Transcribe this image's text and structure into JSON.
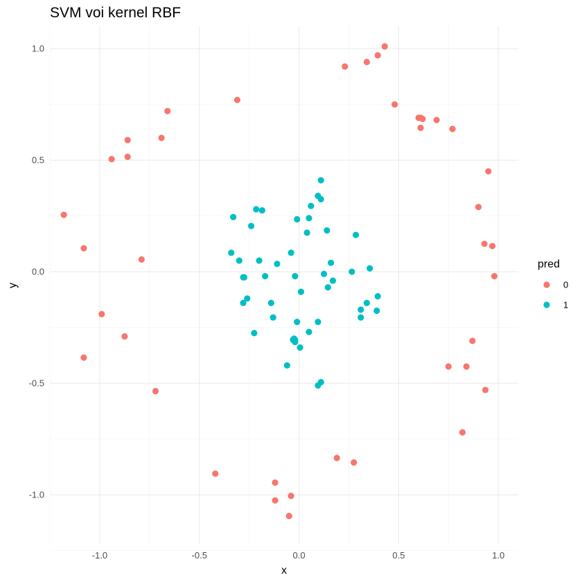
{
  "chart_data": {
    "type": "scatter",
    "title": "SVM voi kernel RBF",
    "xlabel": "x",
    "ylabel": "y",
    "xlim": [
      -1.25,
      1.1
    ],
    "ylim": [
      -1.22,
      1.1
    ],
    "x_ticks": [
      -1.0,
      -0.5,
      0.0,
      0.5,
      1.0
    ],
    "x_tick_labels": [
      "-1.0",
      "-0.5",
      "0.0",
      "0.5",
      "1.0"
    ],
    "y_ticks": [
      -1.0,
      -0.5,
      0.0,
      0.5,
      1.0
    ],
    "y_tick_labels": [
      "-1.0",
      "-0.5",
      "0.0",
      "0.5",
      "1.0"
    ],
    "grid": true,
    "legend": {
      "title": "pred",
      "position": "right"
    },
    "series": [
      {
        "name": "0",
        "color": "#F8766D",
        "points": [
          [
            0.43,
            1.01
          ],
          [
            0.395,
            0.97
          ],
          [
            0.34,
            0.94
          ],
          [
            0.23,
            0.92
          ],
          [
            -0.31,
            0.77
          ],
          [
            -0.66,
            0.72
          ],
          [
            0.48,
            0.75
          ],
          [
            0.6,
            0.69
          ],
          [
            0.61,
            0.69
          ],
          [
            0.62,
            0.685
          ],
          [
            0.69,
            0.68
          ],
          [
            0.61,
            0.645
          ],
          [
            0.77,
            0.64
          ],
          [
            -0.86,
            0.59
          ],
          [
            -0.69,
            0.6
          ],
          [
            -0.86,
            0.515
          ],
          [
            -0.94,
            0.505
          ],
          [
            0.95,
            0.45
          ],
          [
            0.9,
            0.29
          ],
          [
            -1.18,
            0.255
          ],
          [
            0.93,
            0.125
          ],
          [
            0.97,
            0.115
          ],
          [
            -1.08,
            0.105
          ],
          [
            -0.79,
            0.055
          ],
          [
            0.98,
            -0.02
          ],
          [
            -0.99,
            -0.19
          ],
          [
            -0.875,
            -0.29
          ],
          [
            0.87,
            -0.31
          ],
          [
            -1.08,
            -0.385
          ],
          [
            0.75,
            -0.425
          ],
          [
            0.84,
            -0.425
          ],
          [
            -0.72,
            -0.535
          ],
          [
            0.935,
            -0.53
          ],
          [
            0.82,
            -0.72
          ],
          [
            0.19,
            -0.835
          ],
          [
            0.275,
            -0.855
          ],
          [
            -0.42,
            -0.905
          ],
          [
            -0.12,
            -0.945
          ],
          [
            -0.12,
            -1.025
          ],
          [
            -0.04,
            -1.005
          ],
          [
            -0.05,
            -1.095
          ]
        ]
      },
      {
        "name": "1",
        "color": "#00BFC4",
        "points": [
          [
            0.11,
            0.41
          ],
          [
            0.095,
            0.34
          ],
          [
            0.11,
            0.325
          ],
          [
            0.06,
            0.295
          ],
          [
            -0.215,
            0.28
          ],
          [
            -0.185,
            0.275
          ],
          [
            -0.33,
            0.245
          ],
          [
            0.05,
            0.24
          ],
          [
            -0.01,
            0.235
          ],
          [
            -0.24,
            0.205
          ],
          [
            0.14,
            0.185
          ],
          [
            0.04,
            0.175
          ],
          [
            0.285,
            0.165
          ],
          [
            -0.34,
            0.085
          ],
          [
            -0.04,
            0.085
          ],
          [
            -0.3,
            0.05
          ],
          [
            -0.2,
            0.05
          ],
          [
            0.16,
            0.04
          ],
          [
            -0.11,
            0.035
          ],
          [
            0.355,
            0.015
          ],
          [
            0.265,
            0.0
          ],
          [
            0.125,
            -0.01
          ],
          [
            -0.02,
            -0.02
          ],
          [
            -0.17,
            -0.02
          ],
          [
            -0.28,
            -0.025
          ],
          [
            -0.275,
            -0.025
          ],
          [
            0.17,
            -0.04
          ],
          [
            0.145,
            -0.07
          ],
          [
            0.01,
            -0.09
          ],
          [
            0.395,
            -0.11
          ],
          [
            -0.26,
            -0.12
          ],
          [
            -0.28,
            -0.14
          ],
          [
            -0.14,
            -0.14
          ],
          [
            0.34,
            -0.14
          ],
          [
            0.31,
            -0.17
          ],
          [
            0.39,
            -0.175
          ],
          [
            -0.13,
            -0.205
          ],
          [
            0.31,
            -0.205
          ],
          [
            -0.01,
            -0.225
          ],
          [
            0.095,
            -0.225
          ],
          [
            -0.225,
            -0.275
          ],
          [
            0.05,
            -0.27
          ],
          [
            -0.025,
            -0.3
          ],
          [
            -0.02,
            -0.305
          ],
          [
            -0.03,
            -0.305
          ],
          [
            -0.02,
            -0.315
          ],
          [
            0.005,
            -0.34
          ],
          [
            -0.06,
            -0.42
          ],
          [
            0.11,
            -0.495
          ],
          [
            0.095,
            -0.51
          ]
        ]
      }
    ]
  }
}
